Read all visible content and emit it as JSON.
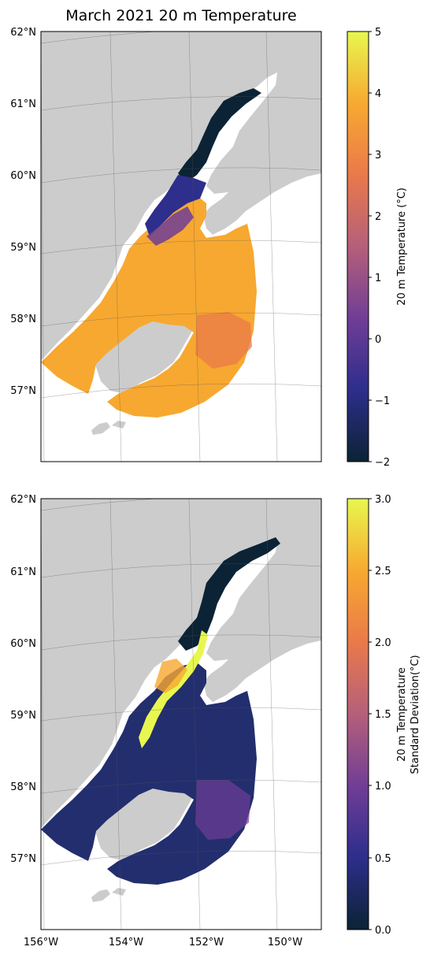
{
  "figure": {
    "title": "March 2021 20 m Temperature"
  },
  "map_axes": {
    "lat_labels": [
      "62°N",
      "61°N",
      "60°N",
      "59°N",
      "58°N",
      "57°N"
    ],
    "lon_labels": [
      "156°W",
      "154°W",
      "152°W",
      "150°W"
    ]
  },
  "panels": [
    {
      "name": "temperature",
      "colorbar": {
        "label_lines": [
          "20 m Temperature (°C)"
        ],
        "ticks": [
          "5",
          "4",
          "3",
          "2",
          "1",
          "0",
          "−1",
          "−2"
        ],
        "range": [
          -2,
          5
        ]
      }
    },
    {
      "name": "std-dev",
      "colorbar": {
        "label_lines": [
          "20 m Temperature",
          "Standard Deviation(°C)"
        ],
        "ticks": [
          "3.0",
          "2.5",
          "2.0",
          "1.5",
          "1.0",
          "0.5",
          "0.0"
        ],
        "range": [
          0,
          3
        ]
      }
    }
  ],
  "colors": {
    "land": "#cccccc",
    "colormap_stops": [
      "#0b2335",
      "#2e2e8c",
      "#6f3d96",
      "#b55f7a",
      "#ea7a4a",
      "#f7a830",
      "#e8f74f"
    ]
  }
}
